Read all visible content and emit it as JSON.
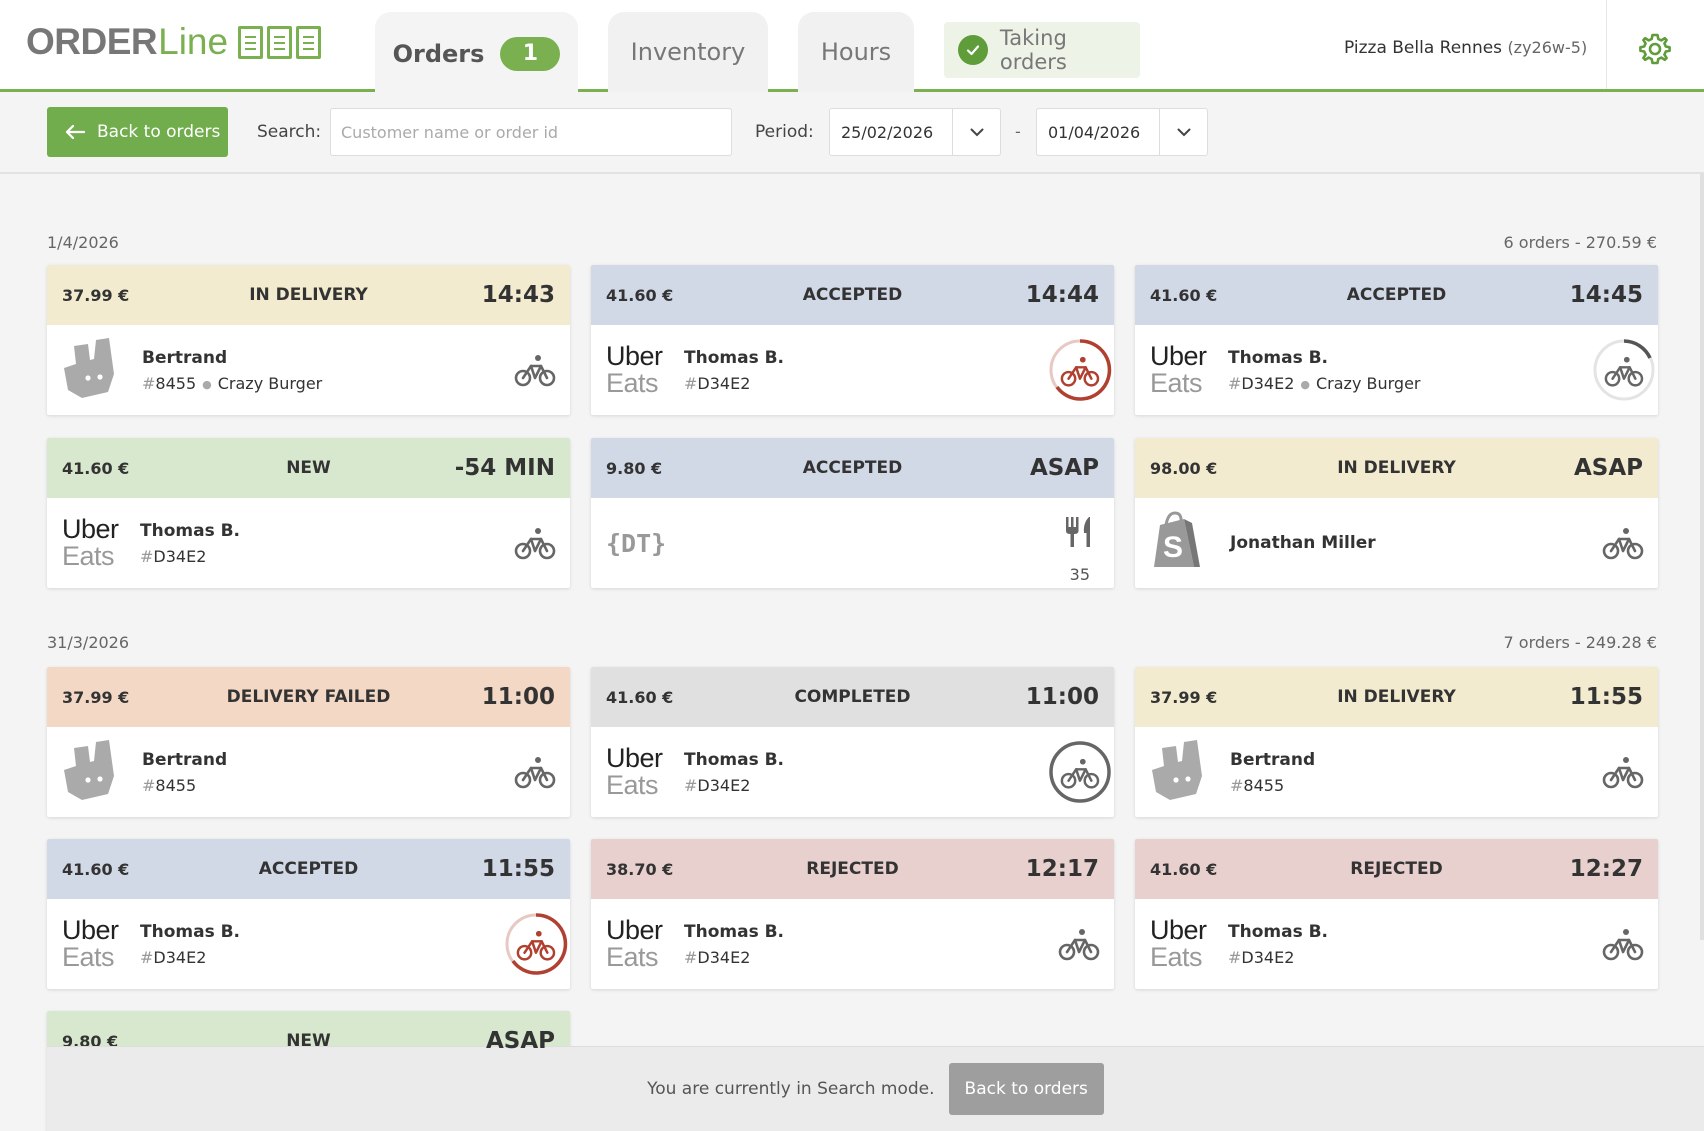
{
  "header": {
    "logo_order": "ORDER",
    "logo_line": "Line",
    "tabs": [
      {
        "label": "Orders",
        "badge": "1"
      },
      {
        "label": "Inventory"
      },
      {
        "label": "Hours"
      }
    ],
    "taking_orders": "Taking orders",
    "restaurant_name": "Pizza Bella Rennes",
    "restaurant_id": "(zy26w-5)"
  },
  "toolbar": {
    "back_label": "Back to orders",
    "search_label": "Search:",
    "search_placeholder": "Customer name or order id",
    "search_value": "",
    "period_label": "Period:",
    "date_from": "25/02/2026",
    "date_sep": "-",
    "date_to": "01/04/2026"
  },
  "days": [
    {
      "date": "1/4/2026",
      "summary": "6 orders - 270.59 €",
      "orders": [
        {
          "price": "37.99 €",
          "status": "IN DELIVERY",
          "time": "14:43",
          "brand": "deliveroo",
          "name": "Bertrand",
          "hash": "#",
          "id": "8455",
          "restaurant": "Crazy Burger",
          "icon": "bike"
        },
        {
          "price": "41.60 €",
          "status": "ACCEPTED",
          "time": "14:44",
          "brand": "ubereats",
          "name": "Thomas B.",
          "hash": "#",
          "id": "D34E2",
          "restaurant": "",
          "icon": "bike-ring-red"
        },
        {
          "price": "41.60 €",
          "status": "ACCEPTED",
          "time": "14:45",
          "brand": "ubereats",
          "name": "Thomas B.",
          "hash": "#",
          "id": "D34E2",
          "restaurant": "Crazy Burger",
          "icon": "bike-ring-grey"
        },
        {
          "price": "41.60 €",
          "status": "NEW",
          "time": "-54 MIN",
          "brand": "ubereats",
          "name": "Thomas B.",
          "hash": "#",
          "id": "D34E2",
          "restaurant": "",
          "icon": "bike"
        },
        {
          "price": "9.80 €",
          "status": "ACCEPTED",
          "time": "ASAP",
          "brand": "dt",
          "name": "",
          "hash": "",
          "id": "",
          "restaurant": "",
          "icon": "cutlery",
          "table": "35"
        },
        {
          "price": "98.00 €",
          "status": "IN DELIVERY",
          "time": "ASAP",
          "brand": "shopify",
          "name": "Jonathan Miller",
          "hash": "",
          "id": "",
          "restaurant": "",
          "icon": "bike"
        }
      ]
    },
    {
      "date": "31/3/2026",
      "summary": "7 orders - 249.28 €",
      "orders": [
        {
          "price": "37.99 €",
          "status": "DELIVERY FAILED",
          "time": "11:00",
          "brand": "deliveroo",
          "name": "Bertrand",
          "hash": "#",
          "id": "8455",
          "restaurant": "",
          "icon": "bike"
        },
        {
          "price": "41.60 €",
          "status": "COMPLETED",
          "time": "11:00",
          "brand": "ubereats",
          "name": "Thomas B.",
          "hash": "#",
          "id": "D34E2",
          "restaurant": "",
          "icon": "bike-ring-dark"
        },
        {
          "price": "37.99 €",
          "status": "IN DELIVERY",
          "time": "11:55",
          "brand": "deliveroo",
          "name": "Bertrand",
          "hash": "#",
          "id": "8455",
          "restaurant": "",
          "icon": "bike"
        },
        {
          "price": "41.60 €",
          "status": "ACCEPTED",
          "time": "11:55",
          "brand": "ubereats",
          "name": "Thomas B.",
          "hash": "#",
          "id": "D34E2",
          "restaurant": "",
          "icon": "bike-ring-red"
        },
        {
          "price": "38.70 €",
          "status": "REJECTED",
          "time": "12:17",
          "brand": "ubereats",
          "name": "Thomas B.",
          "hash": "#",
          "id": "D34E2",
          "restaurant": "",
          "icon": "bike"
        },
        {
          "price": "41.60 €",
          "status": "REJECTED",
          "time": "12:27",
          "brand": "ubereats",
          "name": "Thomas B.",
          "hash": "#",
          "id": "D34E2",
          "restaurant": "",
          "icon": "bike"
        },
        {
          "price": "9.80 €",
          "status": "NEW",
          "time": "ASAP",
          "brand": "",
          "name": "",
          "hash": "",
          "id": "",
          "restaurant": "",
          "icon": ""
        }
      ]
    }
  ],
  "brands": {
    "uber": "Uber",
    "eats": "Eats",
    "dt": "{DT}"
  },
  "bottom": {
    "text": "You are currently in Search mode.",
    "button": "Back to orders"
  },
  "colors": {
    "accent": "#72ad4d",
    "ring_red": "#b0402f"
  }
}
